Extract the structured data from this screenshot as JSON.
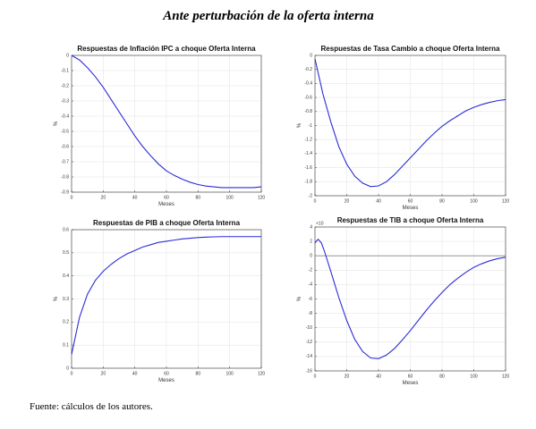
{
  "title": "Ante perturbación de la oferta interna",
  "source": "Fuente: cálculos de los autores.",
  "chart_data": [
    {
      "type": "line",
      "title": "Respuestas de Inflación IPC a choque Oferta Interna",
      "xlabel": "Meses",
      "ylabel": "%",
      "x": [
        0,
        5,
        10,
        15,
        20,
        25,
        30,
        35,
        40,
        45,
        50,
        55,
        60,
        65,
        70,
        75,
        80,
        85,
        90,
        95,
        100,
        105,
        110,
        115,
        120
      ],
      "series": [
        {
          "color": "#2b2bd9",
          "values": [
            0,
            -0.03,
            -0.08,
            -0.14,
            -0.21,
            -0.29,
            -0.37,
            -0.45,
            -0.53,
            -0.6,
            -0.66,
            -0.715,
            -0.76,
            -0.79,
            -0.815,
            -0.835,
            -0.85,
            -0.86,
            -0.865,
            -0.87,
            -0.87,
            -0.87,
            -0.87,
            -0.87,
            -0.865
          ]
        }
      ],
      "xlim": [
        0,
        120
      ],
      "xticks": [
        0,
        20,
        40,
        60,
        80,
        100,
        120
      ],
      "ylim": [
        -0.9,
        0
      ],
      "yticks": [
        0,
        -0.1,
        -0.2,
        -0.3,
        -0.4,
        -0.5,
        -0.6,
        -0.7,
        -0.8,
        -0.9
      ],
      "grid": true
    },
    {
      "type": "line",
      "title": "Respuestas de Tasa Cambio a choque Oferta Interna",
      "xlabel": "Meses",
      "ylabel": "%",
      "x": [
        0,
        5,
        10,
        15,
        20,
        25,
        30,
        35,
        40,
        45,
        50,
        55,
        60,
        65,
        70,
        75,
        80,
        85,
        90,
        95,
        100,
        105,
        110,
        115,
        120
      ],
      "series": [
        {
          "color": "#2b2bd9",
          "values": [
            -0.05,
            -0.55,
            -0.95,
            -1.3,
            -1.55,
            -1.72,
            -1.82,
            -1.87,
            -1.86,
            -1.8,
            -1.7,
            -1.58,
            -1.46,
            -1.34,
            -1.22,
            -1.11,
            -1.01,
            -0.93,
            -0.86,
            -0.79,
            -0.74,
            -0.7,
            -0.67,
            -0.645,
            -0.63
          ]
        }
      ],
      "xlim": [
        0,
        120
      ],
      "xticks": [
        0,
        20,
        40,
        60,
        80,
        100,
        120
      ],
      "ylim": [
        -2,
        0
      ],
      "yticks": [
        0,
        -0.2,
        -0.4,
        -0.6,
        -0.8,
        -1,
        -1.2,
        -1.4,
        -1.6,
        -1.8,
        -2
      ],
      "grid": true
    },
    {
      "type": "line",
      "title": "Respuestas de PIB a choque Oferta Interna",
      "xlabel": "Meses",
      "ylabel": "%",
      "x": [
        0,
        5,
        10,
        15,
        20,
        25,
        30,
        35,
        40,
        45,
        50,
        55,
        60,
        65,
        70,
        75,
        80,
        85,
        90,
        95,
        100,
        105,
        110,
        115,
        120
      ],
      "series": [
        {
          "color": "#2b2bd9",
          "values": [
            0.06,
            0.22,
            0.32,
            0.38,
            0.42,
            0.45,
            0.475,
            0.495,
            0.51,
            0.525,
            0.535,
            0.545,
            0.55,
            0.555,
            0.56,
            0.563,
            0.566,
            0.568,
            0.569,
            0.57,
            0.57,
            0.57,
            0.57,
            0.57,
            0.57
          ]
        }
      ],
      "xlim": [
        0,
        120
      ],
      "xticks": [
        0,
        20,
        40,
        60,
        80,
        100,
        120
      ],
      "ylim": [
        0,
        0.6
      ],
      "yticks": [
        0,
        0.1,
        0.2,
        0.3,
        0.4,
        0.5,
        0.6
      ],
      "grid": true
    },
    {
      "type": "line",
      "title": "Respuestas de TIB a choque Oferta Interna",
      "xlabel": "Meses",
      "ylabel": "%",
      "y_exponent_label": "×10",
      "x": [
        0,
        2,
        4,
        6,
        8,
        10,
        15,
        20,
        25,
        30,
        35,
        40,
        45,
        50,
        55,
        60,
        65,
        70,
        75,
        80,
        85,
        90,
        95,
        100,
        105,
        110,
        115,
        120
      ],
      "series": [
        {
          "color": "#2b2bd9",
          "values": [
            1.8,
            2.3,
            1.8,
            0.6,
            -0.8,
            -2.2,
            -5.8,
            -9,
            -11.6,
            -13.3,
            -14.2,
            -14.3,
            -13.8,
            -12.9,
            -11.7,
            -10.4,
            -9,
            -7.6,
            -6.3,
            -5.1,
            -4,
            -3.1,
            -2.3,
            -1.6,
            -1.1,
            -0.7,
            -0.4,
            -0.2
          ]
        }
      ],
      "xlim": [
        0,
        120
      ],
      "xticks": [
        0,
        20,
        40,
        60,
        80,
        100,
        120
      ],
      "ylim": [
        -16,
        4
      ],
      "yticks": [
        4,
        2,
        0,
        -2,
        -4,
        -6,
        -8,
        -10,
        -12,
        -14,
        -16
      ],
      "grid": true,
      "zero_line": true
    }
  ]
}
